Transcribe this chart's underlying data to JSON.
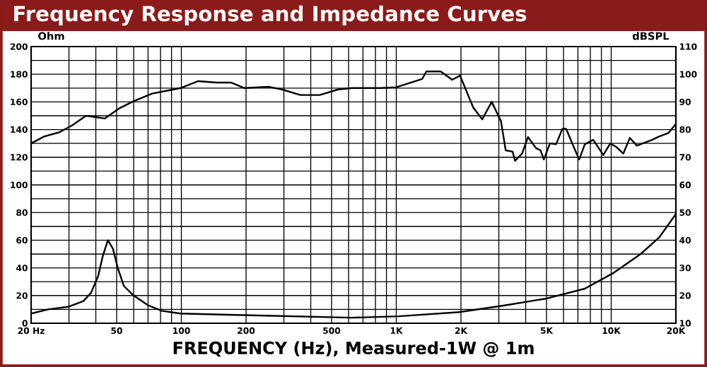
{
  "chart_data": {
    "type": "line",
    "title": "Frequency Response and Impedance Curves",
    "xlabel": "FREQUENCY (Hz), Measured-1W @ 1m",
    "ylabel": "Ohm",
    "y2label": "dBSPL",
    "log": "x",
    "grid": true,
    "xlim": [
      20,
      20000
    ],
    "xticks": [
      {
        "value": 20,
        "label": "20 Hz"
      },
      50,
      100,
      200,
      500,
      {
        "value": 1000,
        "label": "1K"
      },
      {
        "value": 2000,
        "label": "2K"
      },
      {
        "value": 5000,
        "label": "5K"
      },
      {
        "value": 10000,
        "label": "10K"
      },
      {
        "value": 20000,
        "label": "20K"
      }
    ],
    "ylim": [
      0,
      200
    ],
    "yticks": [
      0,
      20,
      40,
      60,
      80,
      100,
      120,
      140,
      160,
      180,
      200
    ],
    "y2lim": [
      10,
      110
    ],
    "y2ticks": [
      10,
      20,
      30,
      40,
      50,
      60,
      70,
      80,
      90,
      100,
      110
    ],
    "series": [
      {
        "color": "#000000",
        "axis": "y2",
        "x": [
          20,
          23,
          27,
          31,
          36,
          44,
          51,
          59,
          73,
          85,
          99,
          120,
          146,
          170,
          197,
          254,
          294,
          358,
          440,
          536,
          623,
          840,
          1000,
          1320,
          1380,
          1610,
          1820,
          1980,
          2280,
          2510,
          2780,
          3070,
          3230,
          3480,
          3570,
          3850,
          4100,
          4470,
          4690,
          4860,
          5190,
          5540,
          5930,
          6170,
          6650,
          7100,
          7540,
          8250,
          9190,
          9900,
          10570,
          11380,
          12210,
          13160,
          14030,
          15510,
          16720,
          18490,
          20000
        ],
        "values": [
          75,
          77.5,
          79,
          81.5,
          85,
          84,
          87.5,
          90,
          93,
          94,
          95,
          97.5,
          97,
          97,
          95,
          95.5,
          94.5,
          92.5,
          92.5,
          94.5,
          95,
          95,
          95.3,
          98.3,
          101,
          101,
          98,
          99.5,
          88,
          83.7,
          90,
          83,
          72.5,
          72,
          68.7,
          71.3,
          77.3,
          73.3,
          72.5,
          69.2,
          75,
          74.7,
          80.3,
          80.3,
          74.2,
          69.2,
          74.7,
          76.3,
          70.8,
          75,
          73.7,
          71.3,
          77,
          74.2,
          75,
          76.3,
          77.5,
          78.8,
          82
        ]
      },
      {
        "color": "#000000",
        "x": [
          20,
          24,
          30,
          35,
          38,
          41,
          43,
          45.5,
          48,
          50.6,
          54,
          60,
          70,
          81,
          99,
          180,
          620,
          1030,
          1960,
          3230,
          5050,
          7540,
          10160,
          13700,
          16720,
          20000
        ],
        "values": [
          7,
          10,
          12,
          16,
          22,
          34,
          48,
          60,
          54,
          40,
          27,
          20,
          13,
          9,
          7,
          6,
          4,
          5,
          8,
          13,
          18,
          25,
          36,
          50,
          62,
          79
        ]
      }
    ]
  }
}
